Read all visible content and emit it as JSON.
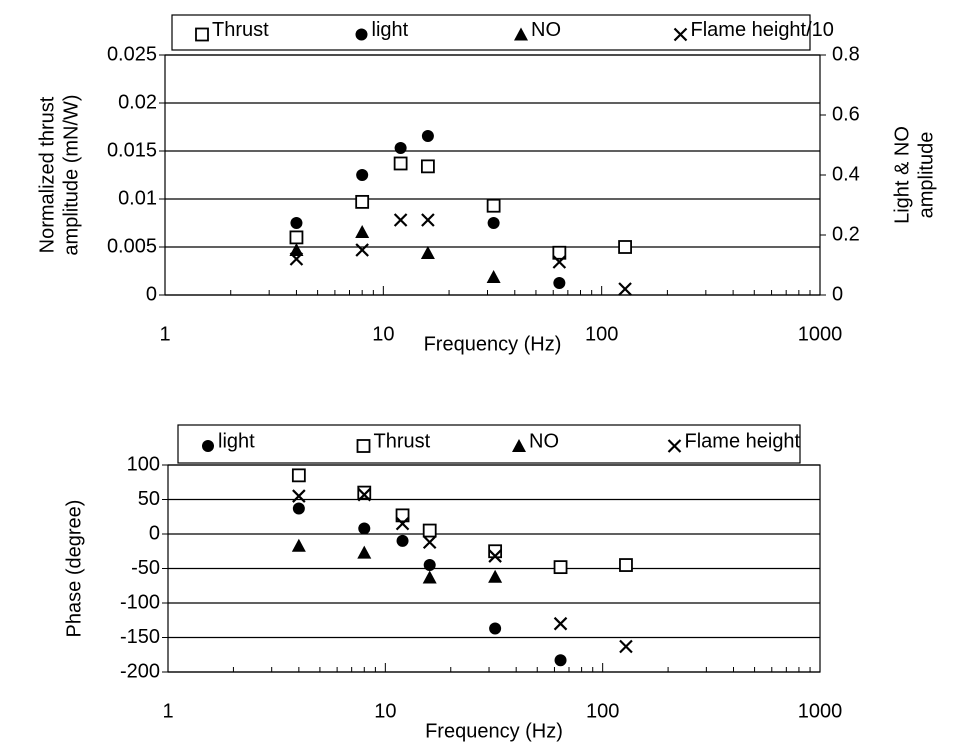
{
  "chart_data": [
    {
      "type": "scatter",
      "xlabel": "Frequency (Hz)",
      "ylabel": [
        "Normalized thrust",
        "amplitude (mN/W)"
      ],
      "y2label": [
        "Light & NO",
        "amplitude"
      ],
      "xscale": "log",
      "xlim": [
        1,
        1000
      ],
      "xticks": [
        1,
        10,
        100,
        1000
      ],
      "ylim": [
        0,
        0.025
      ],
      "yticks": [
        0,
        0.005,
        0.01,
        0.015,
        0.02,
        0.025
      ],
      "y2lim": [
        0,
        0.8
      ],
      "y2ticks": [
        0,
        0.2,
        0.4,
        0.6,
        0.8
      ],
      "grid": true,
      "legend": "top",
      "x": [
        4,
        8,
        12,
        16,
        32,
        64,
        128
      ],
      "series": [
        {
          "name": "Thrust",
          "marker": "square",
          "color": "#000000",
          "values": [
            0.006,
            0.0097,
            0.0137,
            0.0134,
            0.0093,
            0.0044,
            0.005
          ]
        },
        {
          "name": "light",
          "marker": "circle",
          "color": "#000000",
          "axis": "y2",
          "values": [
            0.24,
            0.4,
            0.49,
            0.53,
            0.24,
            0.04,
            null
          ]
        },
        {
          "name": "NO",
          "marker": "triangle",
          "color": "#000000",
          "axis": "y2",
          "values": [
            0.15,
            0.21,
            null,
            0.14,
            0.06,
            null,
            null
          ]
        },
        {
          "name": "Flame height/10",
          "marker": "cross",
          "color": "#000000",
          "axis": "y2",
          "values": [
            0.12,
            0.15,
            0.25,
            0.25,
            null,
            0.11,
            0.02
          ]
        }
      ]
    },
    {
      "type": "scatter",
      "xlabel": "Frequency (Hz)",
      "ylabel": [
        "Phase (degree)"
      ],
      "xscale": "log",
      "xlim": [
        1,
        1000
      ],
      "xticks": [
        1,
        10,
        100,
        1000
      ],
      "ylim": [
        -200,
        100
      ],
      "yticks": [
        -200,
        -150,
        -100,
        -50,
        0,
        50,
        100
      ],
      "grid": true,
      "legend": "top",
      "x": [
        4,
        8,
        12,
        16,
        32,
        64,
        128
      ],
      "series": [
        {
          "name": "light",
          "marker": "circle",
          "color": "#000000",
          "values": [
            37,
            8,
            -10,
            -45,
            -137,
            -183,
            null
          ]
        },
        {
          "name": "Thrust",
          "marker": "square",
          "color": "#000000",
          "values": [
            85,
            60,
            27,
            5,
            -25,
            -48,
            -45
          ]
        },
        {
          "name": "NO",
          "marker": "triangle",
          "color": "#000000",
          "values": [
            -17,
            -27,
            null,
            -63,
            -62,
            null,
            null
          ]
        },
        {
          "name": "Flame height",
          "marker": "cross",
          "color": "#000000",
          "values": [
            55,
            57,
            15,
            -12,
            -32,
            -130,
            -163
          ]
        }
      ]
    }
  ]
}
